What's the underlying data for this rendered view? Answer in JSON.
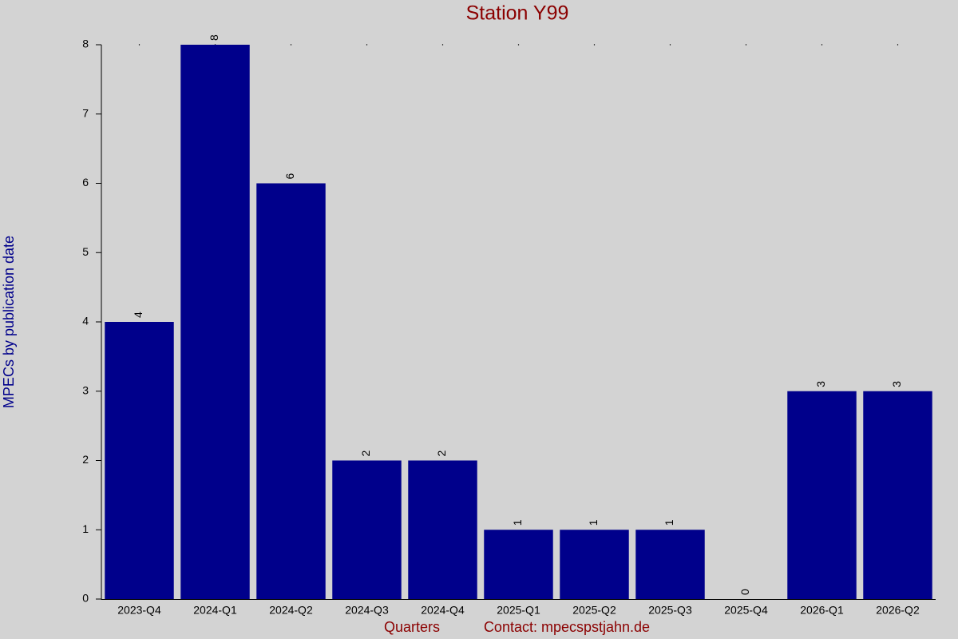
{
  "chart_data": {
    "type": "bar",
    "title": "Station Y99",
    "x_label": "Quarters",
    "annotation": "Contact: mpecspstjahn.de",
    "y_label": "MPECs by publication date",
    "categories": [
      "2023-Q4",
      "2024-Q1",
      "2024-Q2",
      "2024-Q3",
      "2024-Q4",
      "2025-Q1",
      "2025-Q2",
      "2025-Q3",
      "2025-Q4",
      "2026-Q1",
      "2026-Q2"
    ],
    "values": [
      4,
      8,
      6,
      2,
      2,
      1,
      1,
      1,
      0,
      3,
      3
    ],
    "color": "#00008b",
    "ylim": [
      0,
      8
    ],
    "yticks": [
      0,
      1,
      2,
      3,
      4,
      5,
      6,
      7,
      8
    ]
  }
}
